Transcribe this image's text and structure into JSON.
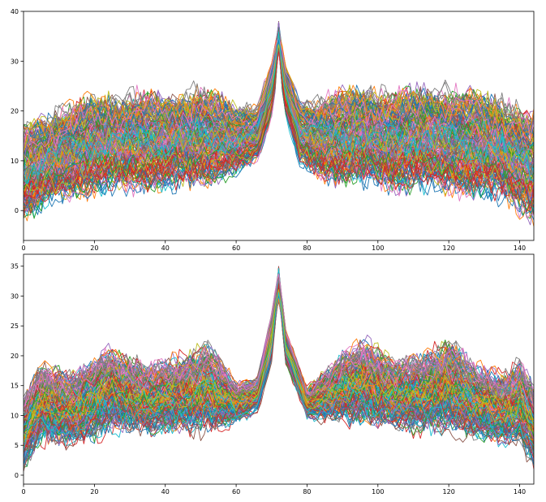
{
  "chart_data": [
    {
      "type": "line",
      "title": "",
      "xlabel": "",
      "ylabel": "",
      "xlim": [
        0,
        144
      ],
      "ylim": [
        -6,
        40
      ],
      "x_ticks": [
        "0",
        "20",
        "40",
        "60",
        "80",
        "100",
        "120",
        "140"
      ],
      "y_ticks": [
        "0",
        "10",
        "20",
        "30",
        "40"
      ],
      "grid": false,
      "legend": "none",
      "line_count_note": "hundreds of overlapping series, x = 0..144, sharp peak near x = 72",
      "peak": {
        "x": 72,
        "y": 38
      },
      "envelope": {
        "x": [
          0,
          10,
          20,
          30,
          40,
          50,
          60,
          66,
          70,
          72,
          74,
          78,
          85,
          95,
          105,
          115,
          125,
          135,
          144
        ],
        "lower": [
          -3,
          1,
          2,
          3,
          3,
          4,
          6,
          9,
          18,
          28,
          18,
          8,
          5,
          4,
          3,
          3,
          2,
          1,
          -3
        ],
        "median": [
          6,
          9,
          10,
          11,
          11,
          12,
          11,
          13,
          22,
          33,
          20,
          12,
          12,
          13,
          12,
          12,
          12,
          10,
          4
        ],
        "upper": [
          18,
          22,
          24,
          25,
          24,
          26,
          22,
          22,
          31,
          38,
          30,
          23,
          24,
          26,
          25,
          26,
          25,
          24,
          20
        ]
      },
      "palette": [
        "#1f77b4",
        "#ff7f0e",
        "#2ca02c",
        "#d62728",
        "#9467bd",
        "#8c564b",
        "#e377c2",
        "#7f7f7f",
        "#bcbd22",
        "#17becf"
      ]
    },
    {
      "type": "line",
      "title": "",
      "xlabel": "",
      "ylabel": "",
      "xlim": [
        0,
        144
      ],
      "ylim": [
        -1.5,
        37
      ],
      "x_ticks": [
        "0",
        "20",
        "40",
        "60",
        "80",
        "100",
        "120",
        "140"
      ],
      "y_ticks": [
        "0",
        "5",
        "10",
        "15",
        "20",
        "25",
        "30",
        "35"
      ],
      "grid": false,
      "legend": "none",
      "line_count_note": "hundreds of overlapping series, x = 0..144, sharp peak near x = 72",
      "peak": {
        "x": 72,
        "y": 35
      },
      "envelope": {
        "x": [
          0,
          5,
          15,
          25,
          35,
          45,
          52,
          60,
          66,
          70,
          72,
          74,
          80,
          90,
          97,
          105,
          112,
          120,
          128,
          135,
          140,
          144
        ],
        "lower": [
          0,
          4,
          4,
          6,
          6,
          6,
          6,
          8,
          10,
          18,
          30,
          18,
          9,
          8,
          7,
          7,
          6,
          6,
          5,
          4,
          4,
          0
        ],
        "median": [
          8,
          11,
          10,
          13,
          12,
          13,
          14,
          11,
          13,
          22,
          32,
          20,
          11,
          14,
          15,
          13,
          13,
          14,
          12,
          12,
          13,
          6
        ],
        "upper": [
          14,
          20,
          18,
          23,
          19,
          21,
          23,
          16,
          17,
          28,
          35,
          25,
          15,
          21,
          24,
          20,
          21,
          24,
          19,
          18,
          20,
          16
        ]
      },
      "palette": [
        "#1f77b4",
        "#ff7f0e",
        "#2ca02c",
        "#d62728",
        "#9467bd",
        "#8c564b",
        "#e377c2",
        "#7f7f7f",
        "#bcbd22",
        "#17becf"
      ]
    }
  ]
}
